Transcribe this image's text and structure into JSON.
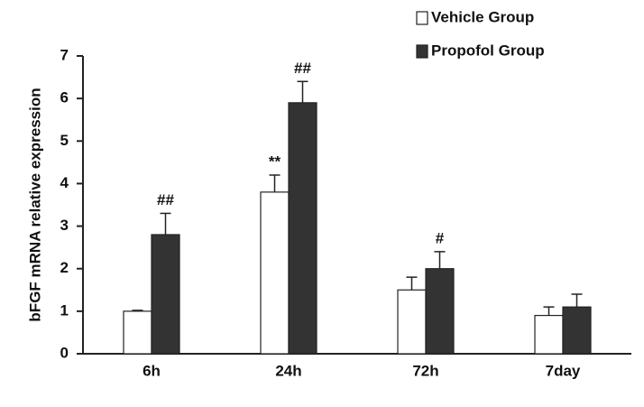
{
  "chart_data": {
    "type": "bar",
    "ylabel": "bFGF mRNA relative expression",
    "categories": [
      "6h",
      "24h",
      "72h",
      "7day"
    ],
    "series": [
      {
        "name": "Vehicle Group",
        "color": "#ffffff",
        "values": [
          1.0,
          3.8,
          1.5,
          0.9
        ],
        "errors": [
          0.02,
          0.4,
          0.3,
          0.2
        ],
        "marks": [
          null,
          "**",
          null,
          null
        ]
      },
      {
        "name": "Propofol Group",
        "color": "#333333",
        "values": [
          2.8,
          5.9,
          2.0,
          1.1
        ],
        "errors": [
          0.5,
          0.5,
          0.4,
          0.3
        ],
        "marks": [
          "##",
          "##",
          "#",
          null
        ]
      }
    ],
    "ylim": [
      0,
      7
    ],
    "yticks": [
      0,
      1,
      2,
      3,
      4,
      5,
      6,
      7
    ],
    "grid": false,
    "legend": "top-right"
  }
}
